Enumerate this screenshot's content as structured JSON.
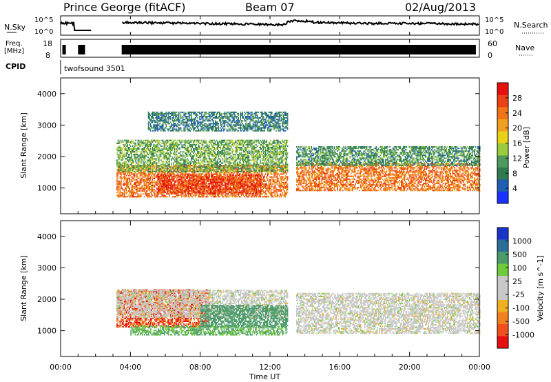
{
  "header": {
    "title": "Prince George (fitACF)",
    "beam": "Beam 07",
    "date": "02/Aug/2013"
  },
  "top_panels": {
    "nsky_label": "N.Sky",
    "nsearch_label": "N.Search",
    "freq_label_line1": "Freq.",
    "freq_label_line2": "[MHz]",
    "nave_label": "Nave",
    "cpid_label": "CPID",
    "cpid_value": "twofsound 3501",
    "noise_left_ticks": [
      "10^5",
      "10^0"
    ],
    "noise_right_ticks": [
      "10^5",
      "10^0"
    ],
    "freq_left_ticks": [
      "18",
      "8"
    ],
    "freq_right_ticks": [
      "60",
      "0"
    ]
  },
  "colors": {
    "power_scale": [
      "#1a33ff",
      "#1e5fb4",
      "#2f7a4e",
      "#4e9a5c",
      "#9acb3c",
      "#e8d218",
      "#f0a020",
      "#f07418",
      "#ea4214",
      "#e61010"
    ],
    "velocity_scale": [
      "#1a33c8",
      "#2c6e9a",
      "#4a9a6a",
      "#6ecc3a",
      "#c8c8c8",
      "#c8c8c8",
      "#f0b020",
      "#f08020",
      "#f05020",
      "#e61010"
    ]
  },
  "chart_data": [
    {
      "type": "heatmap",
      "name": "power",
      "ylabel": "Slant Range [km]",
      "ylim": [
        180,
        4500
      ],
      "yticks": [
        1000,
        2000,
        3000,
        4000
      ],
      "xlim": [
        0,
        24
      ],
      "colorbar_label": "Power [dB]",
      "colorbar_ticks": [
        4,
        8,
        12,
        16,
        20,
        24,
        28
      ],
      "colorbar_range": [
        0,
        32
      ],
      "echo_bands": [
        {
          "t0": 3.2,
          "t1": 13.0,
          "r0": 700,
          "r1": 1700,
          "level": 24
        },
        {
          "t0": 5.5,
          "t1": 11.5,
          "r0": 800,
          "r1": 1400,
          "level": 28
        },
        {
          "t0": 3.2,
          "t1": 13.0,
          "r0": 1500,
          "r1": 2500,
          "level": 12
        },
        {
          "t0": 13.5,
          "t1": 24.0,
          "r0": 900,
          "r1": 1800,
          "level": 24
        },
        {
          "t0": 13.5,
          "t1": 24.0,
          "r0": 1700,
          "r1": 2300,
          "level": 10
        },
        {
          "t0": 5.0,
          "t1": 13.0,
          "r0": 2800,
          "r1": 3400,
          "level": 8
        }
      ]
    },
    {
      "type": "heatmap",
      "name": "velocity",
      "ylabel": "Slant Range [km]",
      "xlabel": "Time UT",
      "ylim": [
        180,
        4500
      ],
      "yticks": [
        1000,
        2000,
        3000,
        4000
      ],
      "xlim": [
        0,
        24
      ],
      "xticks": [
        "00:00",
        "04:00",
        "08:00",
        "12:00",
        "16:00",
        "20:00",
        "00:00"
      ],
      "colorbar_label": "Velocity [m s^-1]",
      "colorbar_ticks": [
        1000,
        500,
        100,
        25,
        -25,
        -100,
        -500,
        -1000
      ],
      "echo_bands": [
        {
          "t0": 3.2,
          "t1": 8.5,
          "r0": 1100,
          "r1": 2300,
          "level": -500
        },
        {
          "t0": 3.2,
          "t1": 13.0,
          "r0": 1400,
          "r1": 2300,
          "level": 0
        },
        {
          "t0": 8.0,
          "t1": 13.0,
          "r0": 1100,
          "r1": 1800,
          "level": 300
        },
        {
          "t0": 4.0,
          "t1": 13.0,
          "r0": 850,
          "r1": 1150,
          "level": 100
        },
        {
          "t0": 13.5,
          "t1": 24.0,
          "r0": 900,
          "r1": 2200,
          "level": 0
        }
      ]
    }
  ]
}
